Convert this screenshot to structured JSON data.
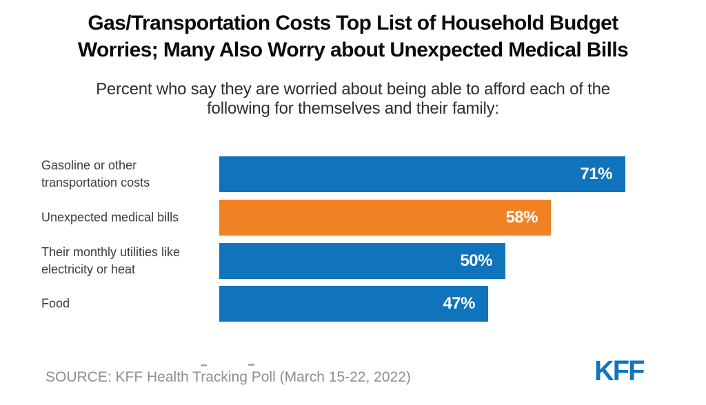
{
  "header": {
    "title": "Gas/Transportation Costs Top List of Household Budget Worries; Many Also Worry about Unexpected Medical Bills",
    "title_lines": [
      "Gas/Transportation Costs Top List of Household Budget",
      "Worries; Many Also Worry about Unexpected Medical Bills"
    ],
    "subtitle": "Percent who say they are worried about being able to afford each of the following for themselves and their family:",
    "subtitle_lines": [
      "Percent who say they are worried about being able to afford each of the",
      "following for themselves and their family:"
    ]
  },
  "chart_data": {
    "type": "bar",
    "orientation": "horizontal",
    "title": "Gas/Transportation Costs Top List of Household Budget Worries; Many Also Worry about Unexpected Medical Bills",
    "subtitle": "Percent who say they are worried about being able to afford each of the following for themselves and their family:",
    "categories": [
      "Gasoline or other transportation costs",
      "Unexpected medical bills",
      "Their monthly utilities like electricity or heat",
      "Food"
    ],
    "label_lines": [
      [
        "Gasoline or other",
        "transportation costs"
      ],
      [
        "Unexpected medical bills"
      ],
      [
        "Their monthly utilities like",
        "electricity or heat"
      ],
      [
        "Food"
      ]
    ],
    "values": [
      71,
      58,
      50,
      47
    ],
    "value_labels": [
      "71%",
      "58%",
      "50%",
      "47%"
    ],
    "bar_colors": [
      "#1074BC",
      "#F08223",
      "#1074BC",
      "#1074BC"
    ],
    "value_label_position": "inside-end",
    "axis": "none",
    "grid": false,
    "legend": "none",
    "xlim": [
      0,
      100
    ]
  },
  "footer": {
    "source": "SOURCE: KFF Health Tracking Poll (March 15-22, 2022)",
    "logo": "KFF"
  },
  "colors": {
    "bar_blue": "#1074BC",
    "bar_orange": "#F08223",
    "logo_blue": "#0E74C4",
    "title_text": "#0B0B0B",
    "source_text": "#8E8E8E",
    "background": "#FFFFFF"
  }
}
